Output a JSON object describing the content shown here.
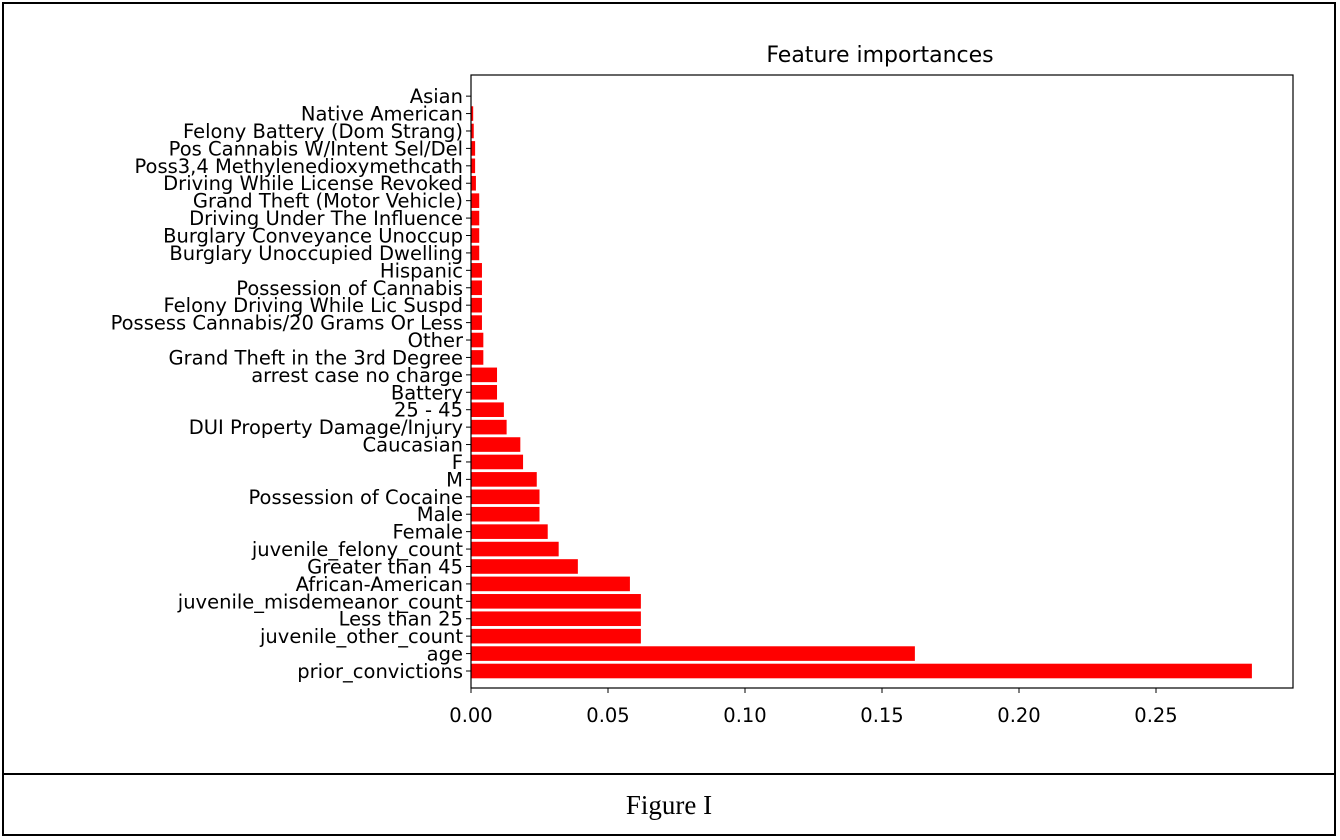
{
  "caption": "Figure I",
  "chart_data": {
    "type": "bar",
    "orientation": "horizontal",
    "title": "Feature importances",
    "xlabel": "",
    "ylabel": "",
    "xlim": [
      0,
      0.3
    ],
    "xticks": [
      0.0,
      0.05,
      0.1,
      0.15,
      0.2,
      0.25
    ],
    "xtick_labels": [
      "0.00",
      "0.05",
      "0.10",
      "0.15",
      "0.20",
      "0.25"
    ],
    "bar_color": "#ff0000",
    "categories": [
      "prior_convictions",
      "age",
      "juvenile_other_count",
      "Less than 25",
      "juvenile_misdemeanor_count",
      "African-American",
      "Greater than 45",
      "juvenile_felony_count",
      "Female",
      "Male",
      "Possession of Cocaine",
      "M",
      "F",
      "Caucasian",
      "DUI Property Damage/Injury",
      "25 - 45",
      "Battery",
      "arrest case no charge",
      "Grand Theft in the 3rd Degree",
      "Other",
      "Possess Cannabis/20 Grams Or Less",
      "Felony Driving While Lic Suspd",
      "Possession of Cannabis",
      "Hispanic",
      "Burglary Unoccupied Dwelling",
      "Burglary Conveyance Unoccup",
      "Driving Under The Influence",
      "Grand Theft (Motor Vehicle)",
      "Driving While License Revoked",
      "Poss3,4 Methylenedioxymethcath",
      "Pos Cannabis W/Intent Sel/Del",
      "Felony Battery (Dom Strang)",
      "Native American",
      "Asian"
    ],
    "values": [
      0.285,
      0.162,
      0.062,
      0.062,
      0.062,
      0.058,
      0.039,
      0.032,
      0.028,
      0.025,
      0.025,
      0.024,
      0.019,
      0.018,
      0.013,
      0.012,
      0.0095,
      0.0095,
      0.0045,
      0.0045,
      0.004,
      0.004,
      0.004,
      0.004,
      0.003,
      0.003,
      0.003,
      0.003,
      0.0018,
      0.0015,
      0.0015,
      0.001,
      0.0008,
      0.0
    ]
  }
}
